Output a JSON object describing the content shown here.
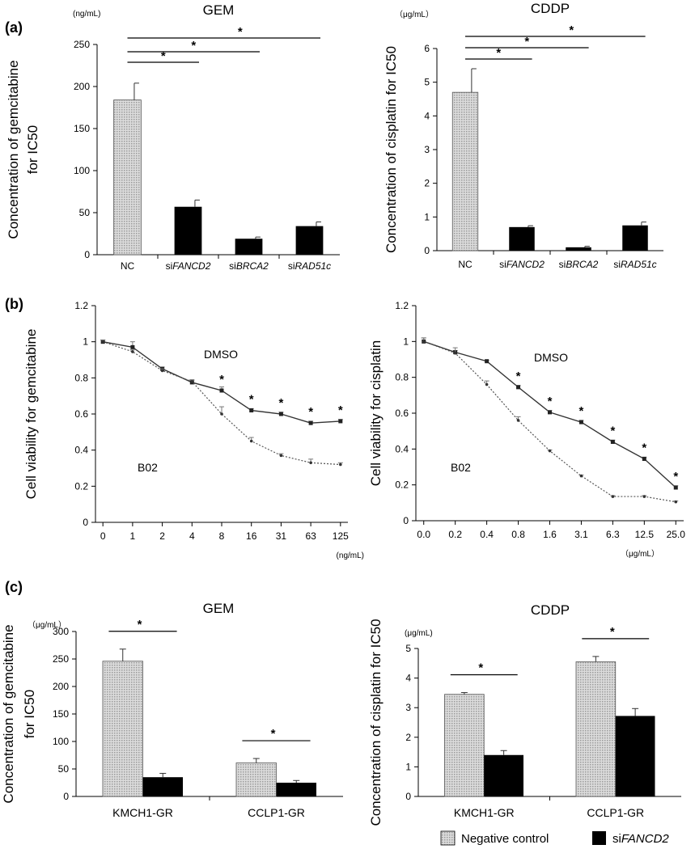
{
  "panels": {
    "a": "(a)",
    "b": "(b)",
    "c": "(c)"
  },
  "colors": {
    "control": "#d8d8d8",
    "knockdown": "#000000",
    "axis": "#000000"
  },
  "legend": {
    "items": [
      {
        "label_pre": "",
        "label_it": "",
        "label_plain": "Negative control",
        "swatch": "control"
      },
      {
        "label_pre": "si",
        "label_it": "FANCD2",
        "label_plain": "",
        "swatch": "knockdown"
      }
    ]
  },
  "chart_data": [
    {
      "id": "a-gem",
      "type": "bar",
      "title": "GEM",
      "unit": "(ng/mL)",
      "ylabel": [
        "Concentration of gemcitabine",
        "for IC50"
      ],
      "ylim": [
        0,
        250
      ],
      "yticks": [
        0,
        50,
        100,
        150,
        200,
        250
      ],
      "categories": [
        {
          "pre": "",
          "it": "",
          "plain": "NC"
        },
        {
          "pre": "si",
          "it": "FANCD2",
          "plain": ""
        },
        {
          "pre": "si",
          "it": "BRCA2",
          "plain": ""
        },
        {
          "pre": "si",
          "it": "RAD51c",
          "plain": ""
        }
      ],
      "values": [
        184,
        57,
        19,
        34
      ],
      "errors": [
        20,
        8,
        2,
        5
      ],
      "fills": [
        "control",
        "knockdown",
        "knockdown",
        "knockdown"
      ],
      "significance": [
        {
          "from": 0,
          "to": 1,
          "label": "*"
        },
        {
          "from": 0,
          "to": 2,
          "label": "*"
        },
        {
          "from": 0,
          "to": 3,
          "label": "*"
        }
      ]
    },
    {
      "id": "a-cddp",
      "type": "bar",
      "title": "CDDP",
      "unit": "（μg/mL）",
      "ylabel": [
        "Concentration of cisplatin for IC50"
      ],
      "ylim": [
        0,
        6
      ],
      "yticks": [
        0,
        1,
        2,
        3,
        4,
        5,
        6
      ],
      "categories": [
        {
          "pre": "",
          "it": "",
          "plain": "NC"
        },
        {
          "pre": "si",
          "it": "FANCD2",
          "plain": ""
        },
        {
          "pre": "si",
          "it": "BRCA2",
          "plain": ""
        },
        {
          "pre": "si",
          "it": "RAD51c",
          "plain": ""
        }
      ],
      "values": [
        4.7,
        0.7,
        0.1,
        0.75
      ],
      "errors": [
        0.7,
        0.04,
        0.03,
        0.1
      ],
      "fills": [
        "control",
        "knockdown",
        "knockdown",
        "knockdown"
      ],
      "significance": [
        {
          "from": 0,
          "to": 1,
          "label": "*"
        },
        {
          "from": 0,
          "to": 2,
          "label": "*"
        },
        {
          "from": 0,
          "to": 3,
          "label": "*"
        }
      ]
    },
    {
      "id": "b-gem",
      "type": "line",
      "xunit": "(ng/mL)",
      "ylabel": "Cell viability for gemcitabine",
      "ylim": [
        0,
        1.2
      ],
      "yticks": [
        "0",
        "0.2",
        "0.4",
        "0.6",
        "0.8",
        "1",
        "1.2"
      ],
      "x": [
        "0",
        "1",
        "2",
        "4",
        "8",
        "16",
        "31",
        "63",
        "125"
      ],
      "series": [
        {
          "name": "DMSO",
          "style": "solid",
          "values": [
            1.0,
            0.97,
            0.85,
            0.775,
            0.73,
            0.62,
            0.6,
            0.55,
            0.56
          ],
          "errors": [
            0.01,
            0.03,
            0.01,
            0.01,
            0.02,
            0.01,
            0.01,
            0.01,
            0.01
          ]
        },
        {
          "name": "B02",
          "style": "dotted",
          "values": [
            1.0,
            0.945,
            0.84,
            0.78,
            0.6,
            0.45,
            0.37,
            0.33,
            0.32
          ],
          "errors": [
            0.01,
            0.01,
            0.01,
            0.01,
            0.04,
            0.02,
            0.01,
            0.02,
            0.01
          ]
        }
      ],
      "stars": [
        4,
        5,
        6,
        7,
        8
      ],
      "star_label": "*"
    },
    {
      "id": "b-cddp",
      "type": "line",
      "xunit": "（μg/mL）",
      "ylabel": "Cell viability for cisplatin",
      "ylim": [
        0,
        1.2
      ],
      "yticks": [
        "0",
        "0.2",
        "0.4",
        "0.6",
        "0.8",
        "1",
        "1.2"
      ],
      "x": [
        "0.0",
        "0.2",
        "0.4",
        "0.8",
        "1.6",
        "3.1",
        "6.3",
        "12.5",
        "25.0"
      ],
      "series": [
        {
          "name": "DMSO",
          "style": "solid",
          "values": [
            1.0,
            0.94,
            0.89,
            0.745,
            0.605,
            0.55,
            0.44,
            0.345,
            0.185
          ],
          "errors": [
            0.02,
            0.01,
            0.005,
            0.01,
            0.01,
            0.01,
            0.01,
            0.01,
            0.01
          ]
        },
        {
          "name": "B02",
          "style": "dotted",
          "values": [
            1.0,
            0.935,
            0.76,
            0.56,
            0.39,
            0.25,
            0.135,
            0.135,
            0.105
          ],
          "errors": [
            0.02,
            0.03,
            0.02,
            0.02,
            0.005,
            0.005,
            0.005,
            0.005,
            0.005
          ]
        }
      ],
      "stars": [
        3,
        4,
        5,
        6,
        7,
        8
      ],
      "star_label": "*"
    },
    {
      "id": "c-gem",
      "type": "bar",
      "title": "GEM",
      "unit": "（μg/mL）",
      "ylabel": [
        "Concentration of gemcitabine",
        "for IC50"
      ],
      "ylim": [
        0,
        300
      ],
      "yticks": [
        0,
        50,
        100,
        150,
        200,
        250,
        300
      ],
      "groups": [
        "KMCH1-GR",
        "CCLP1-GR"
      ],
      "series": [
        {
          "name": "Negative control",
          "fill": "control",
          "values": [
            246,
            61
          ],
          "errors": [
            22,
            8
          ]
        },
        {
          "name": "siFANCD2",
          "fill": "knockdown",
          "values": [
            35,
            25
          ],
          "errors": [
            7,
            4
          ]
        }
      ],
      "significance": [
        {
          "group": 0,
          "label": "*"
        },
        {
          "group": 1,
          "label": "*"
        }
      ]
    },
    {
      "id": "c-cddp",
      "type": "bar",
      "title": "CDDP",
      "unit": "(μg/mL)",
      "ylabel": [
        "Concentration of cisplatin for IC50"
      ],
      "ylim": [
        0,
        5
      ],
      "yticks": [
        0,
        1,
        2,
        3,
        4,
        5
      ],
      "groups": [
        "KMCH1-GR",
        "CCLP1-GR"
      ],
      "series": [
        {
          "name": "Negative control",
          "fill": "control",
          "values": [
            3.45,
            4.55
          ],
          "errors": [
            0.06,
            0.18
          ]
        },
        {
          "name": "siFANCD2",
          "fill": "knockdown",
          "values": [
            1.4,
            2.72
          ],
          "errors": [
            0.15,
            0.25
          ]
        }
      ],
      "significance": [
        {
          "group": 0,
          "label": "*"
        },
        {
          "group": 1,
          "label": "*"
        }
      ]
    }
  ]
}
